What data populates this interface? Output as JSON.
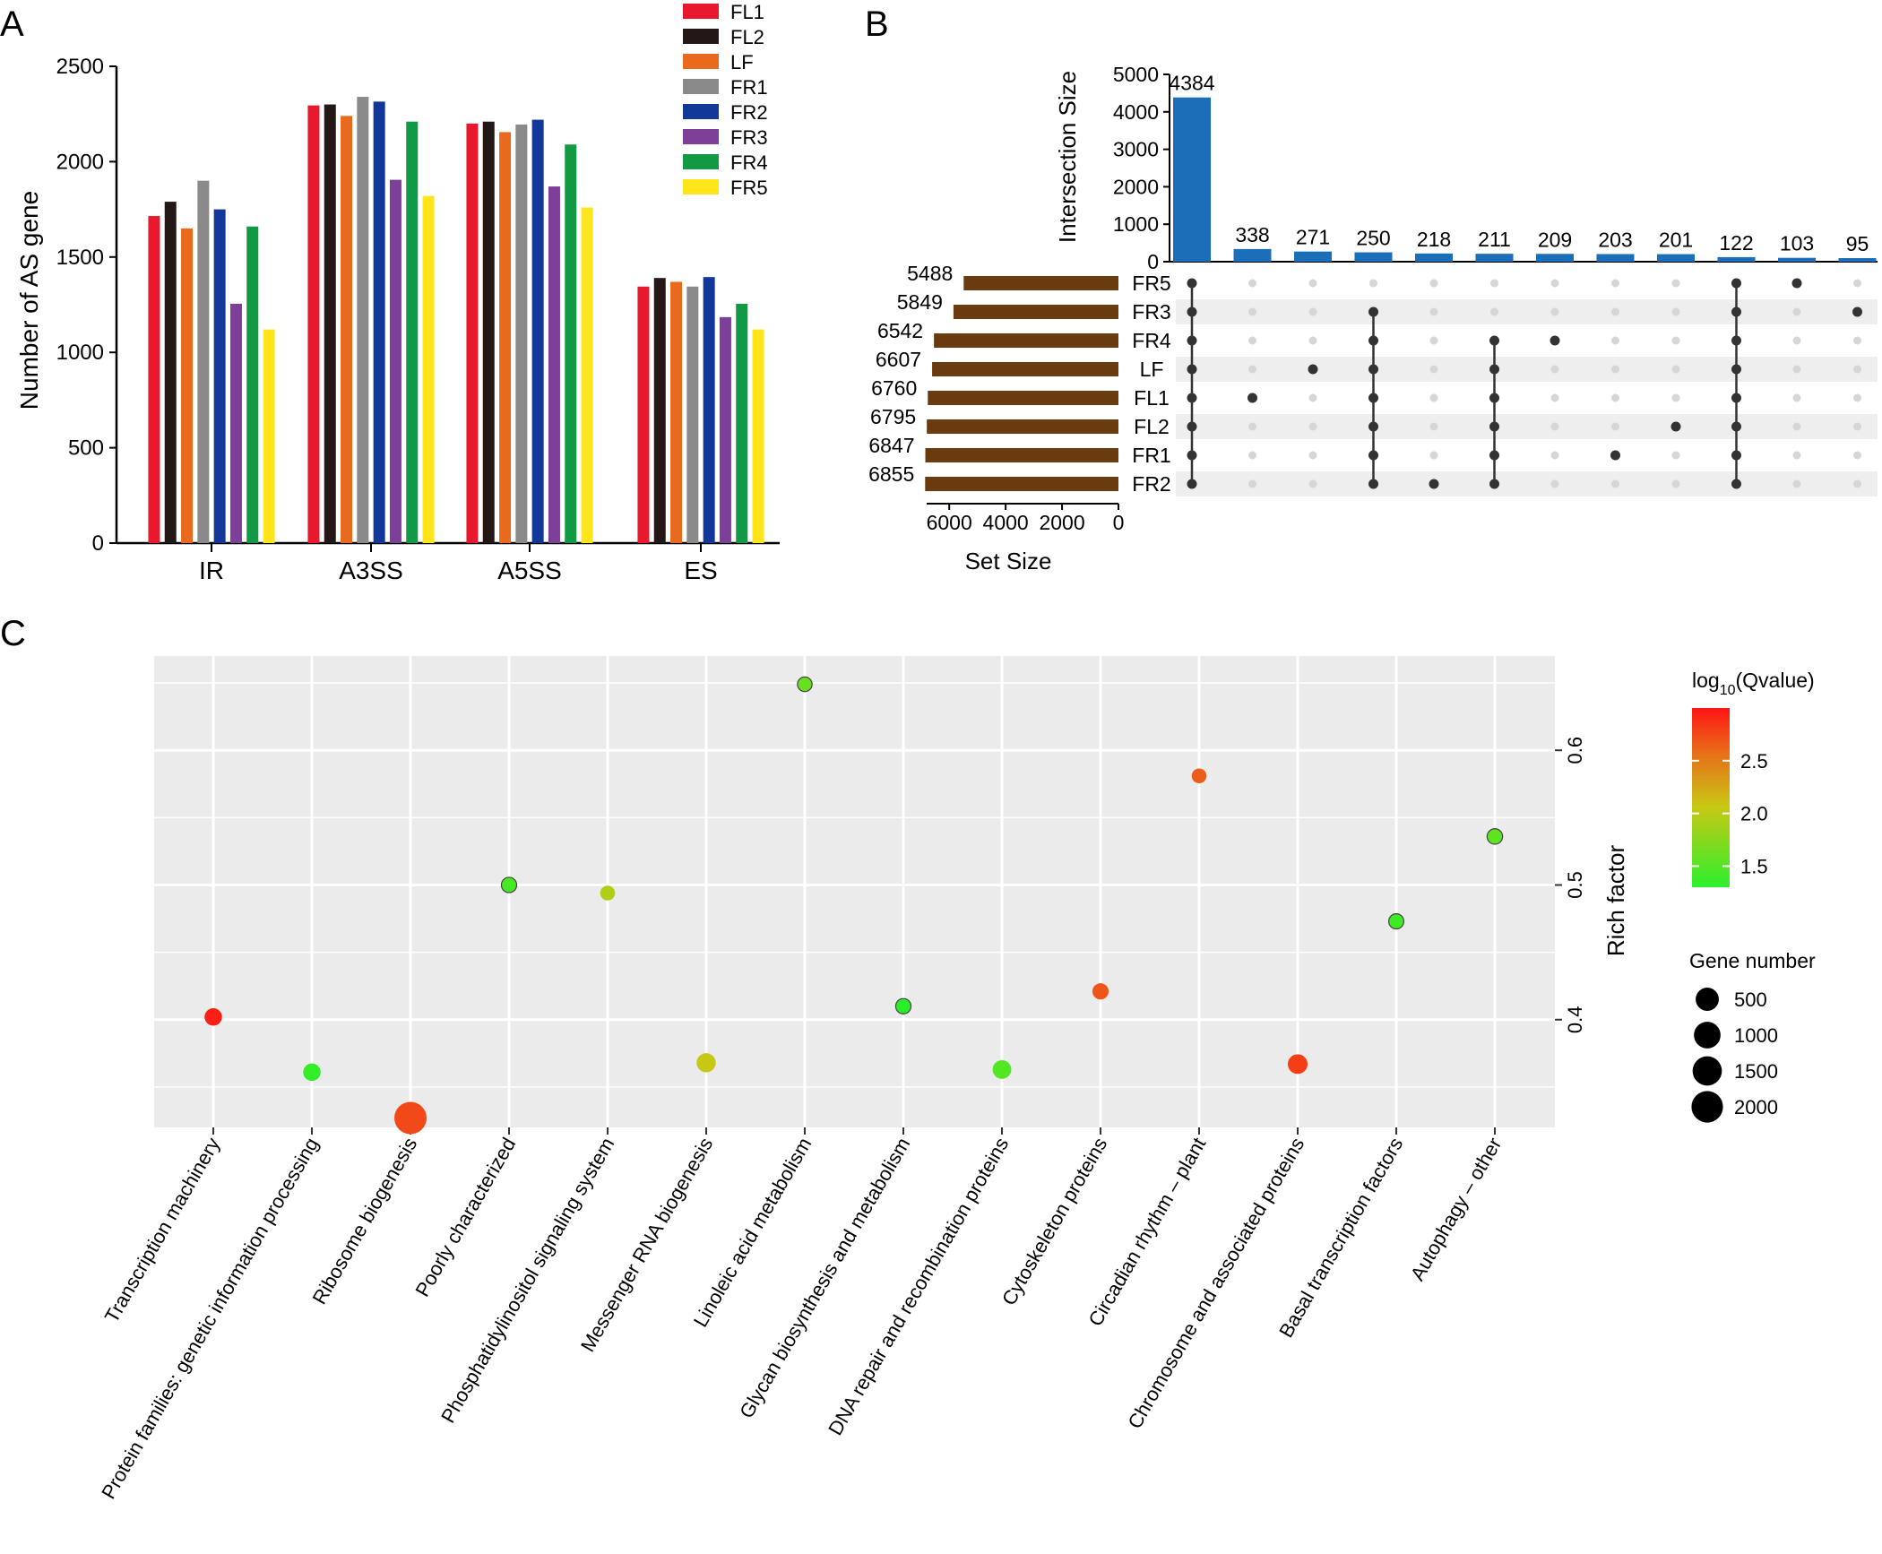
{
  "colors": {
    "FL1": "#e8192c",
    "FL2": "#231815",
    "LF": "#ea6a1d",
    "FR1": "#8a8a8a",
    "FR2": "#12399a",
    "FR3": "#7d3f98",
    "FR4": "#119944",
    "FR5": "#ffe51a",
    "upset_bar": "#1a6fb8",
    "set_bar": "#6b3b10",
    "dot_on": "#333333",
    "dot_off": "#d6d6d6",
    "panel_bg": "#ebebeb",
    "grid": "#ffffff"
  },
  "chart_data": [
    {
      "panel": "A",
      "type": "bar",
      "ylabel": "Number of AS gene",
      "ylim": [
        0,
        2500
      ],
      "yticks": [
        "0",
        "500",
        "1000",
        "1500",
        "2000",
        "2500"
      ],
      "categories": [
        "IR",
        "A3SS",
        "A5SS",
        "ES"
      ],
      "legend_position": "top-right",
      "series": [
        {
          "name": "FL1",
          "values": [
            1715,
            2295,
            2200,
            1345
          ]
        },
        {
          "name": "FL2",
          "values": [
            1790,
            2300,
            2210,
            1390
          ]
        },
        {
          "name": "LF",
          "values": [
            1650,
            2240,
            2155,
            1370
          ]
        },
        {
          "name": "FR1",
          "values": [
            1900,
            2340,
            2195,
            1345
          ]
        },
        {
          "name": "FR2",
          "values": [
            1750,
            2315,
            2220,
            1395
          ]
        },
        {
          "name": "FR3",
          "values": [
            1255,
            1905,
            1870,
            1185
          ]
        },
        {
          "name": "FR4",
          "values": [
            1660,
            2210,
            2090,
            1255
          ]
        },
        {
          "name": "FR5",
          "values": [
            1120,
            1820,
            1760,
            1120
          ]
        }
      ]
    },
    {
      "panel": "B",
      "type": "upset",
      "ylabel": "Intersection Size",
      "ylim": [
        0,
        5000
      ],
      "yticks": [
        "0",
        "1000",
        "2000",
        "3000",
        "4000",
        "5000"
      ],
      "intersection_sizes": [
        "4384",
        "338",
        "271",
        "250",
        "218",
        "211",
        "209",
        "203",
        "201",
        "122",
        "103",
        "95"
      ],
      "intersection_values": [
        4384,
        338,
        271,
        250,
        218,
        211,
        209,
        203,
        201,
        122,
        103,
        95
      ],
      "sets": [
        "FR5",
        "FR3",
        "FR4",
        "LF",
        "FL1",
        "FL2",
        "FR1",
        "FR2"
      ],
      "set_sizes": [
        "5488",
        "5849",
        "6542",
        "6607",
        "6760",
        "6795",
        "6847",
        "6855"
      ],
      "set_values": [
        5488,
        5849,
        6542,
        6607,
        6760,
        6795,
        6847,
        6855
      ],
      "set_axis_label": "Set Size",
      "set_xticks": [
        "6000",
        "4000",
        "2000",
        "0"
      ],
      "memberships": [
        [
          "FR5",
          "FR3",
          "FR4",
          "LF",
          "FL1",
          "FL2",
          "FR1",
          "FR2"
        ],
        [
          "FL1"
        ],
        [
          "LF"
        ],
        [
          "FR3",
          "FR4",
          "LF",
          "FL1",
          "FL2",
          "FR1",
          "FR2"
        ],
        [
          "FR2"
        ],
        [
          "FR4",
          "LF",
          "FL1",
          "FL2",
          "FR1",
          "FR2"
        ],
        [
          "FR4"
        ],
        [
          "FR1"
        ],
        [
          "FL2"
        ],
        [
          "FR5",
          "FR3",
          "FR4",
          "LF",
          "FL1",
          "FL2",
          "FR1",
          "FR2"
        ],
        [
          "FR5"
        ],
        [
          "FR3"
        ]
      ]
    },
    {
      "panel": "C",
      "type": "scatter",
      "ylabel": "Rich factor",
      "ylim": [
        0.32,
        0.67
      ],
      "yticks": [
        0.4,
        0.5,
        0.6
      ],
      "ytick_labels": [
        "0.4",
        "0.5",
        "0.6"
      ],
      "categories": [
        "Transcription machinery",
        "Protein families: genetic information processing",
        "Ribosome biogenesis",
        "Poorly characterized",
        "Phosphatidylinositol signaling system",
        "Messenger RNA biogenesis",
        "Linoleic acid metabolism",
        "Glycan biosynthesis and metabolism",
        "DNA repair and recombination proteins",
        "Cytoskeleton proteins",
        "Circadian rhythm – plant",
        "Chromosome and associated proteins",
        "Basal transcription factors",
        "Autophagy – other"
      ],
      "rich_factor": [
        0.402,
        0.361,
        0.327,
        0.5,
        0.494,
        0.368,
        0.649,
        0.41,
        0.363,
        0.421,
        0.581,
        0.367,
        0.473,
        0.536
      ],
      "log10_qvalue": [
        2.95,
        1.35,
        2.75,
        1.45,
        1.95,
        2.05,
        1.6,
        1.3,
        1.5,
        2.7,
        2.65,
        2.8,
        1.4,
        1.55
      ],
      "gene_number": [
        250,
        250,
        2200,
        130,
        110,
        380,
        100,
        130,
        340,
        180,
        110,
        430,
        120,
        140
      ],
      "color_legend": {
        "title": "log",
        "title_sub": "10",
        "title_suffix": "(Qvalue)",
        "ticks": [
          "2.5",
          "2.0",
          "1.5"
        ],
        "tick_values": [
          2.5,
          2.0,
          1.5
        ],
        "range": [
          1.3,
          3.0
        ]
      },
      "size_legend": {
        "title": "Gene number",
        "labels": [
          "500",
          "1000",
          "1500",
          "2000"
        ],
        "values": [
          500,
          1000,
          1500,
          2000
        ]
      }
    }
  ],
  "panel_labels": {
    "a": "A",
    "b": "B",
    "c": "C"
  }
}
